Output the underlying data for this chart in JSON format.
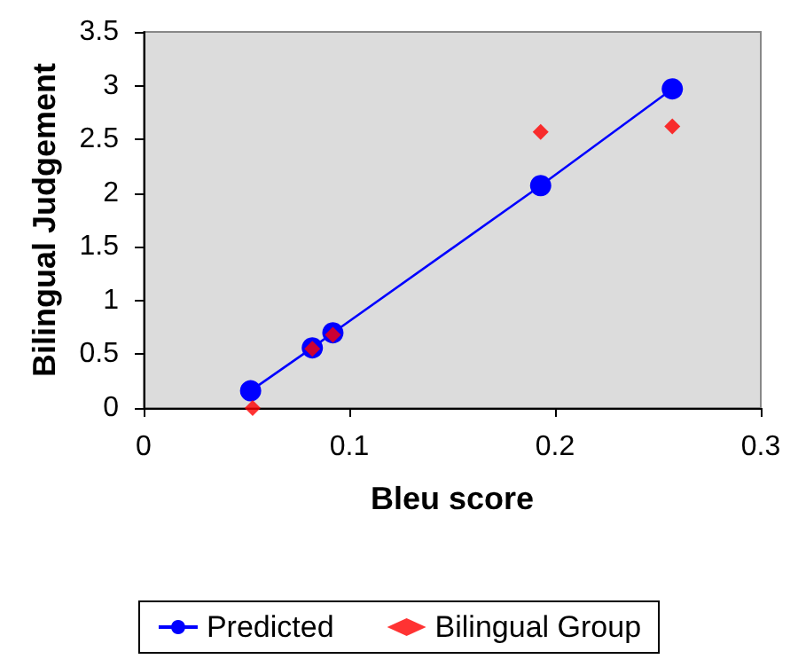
{
  "chart_data": {
    "type": "scatter",
    "xlabel": "Bleu score",
    "ylabel": "Bilingual Judgement",
    "xlim": [
      0,
      0.3
    ],
    "xticks": [
      0,
      0.1,
      0.2,
      0.3
    ],
    "ylim": [
      0,
      3.5
    ],
    "yticks": [
      0,
      0.5,
      1,
      1.5,
      2,
      2.5,
      3,
      3.5
    ],
    "grid": false,
    "legend": "bottom",
    "series": [
      {
        "name": "Predicted",
        "type": "line",
        "marker": "circle",
        "color": "#0000ff",
        "x": [
          0.052,
          0.082,
          0.092,
          0.193,
          0.257
        ],
        "values": [
          0.16,
          0.56,
          0.7,
          2.07,
          2.97
        ]
      },
      {
        "name": "Bilingual Group",
        "marker": "diamond",
        "color": "#ff0000",
        "x": [
          0.053,
          0.082,
          0.092,
          0.193,
          0.257
        ],
        "values": [
          0,
          0.55,
          0.68,
          2.57,
          2.62
        ]
      }
    ]
  }
}
